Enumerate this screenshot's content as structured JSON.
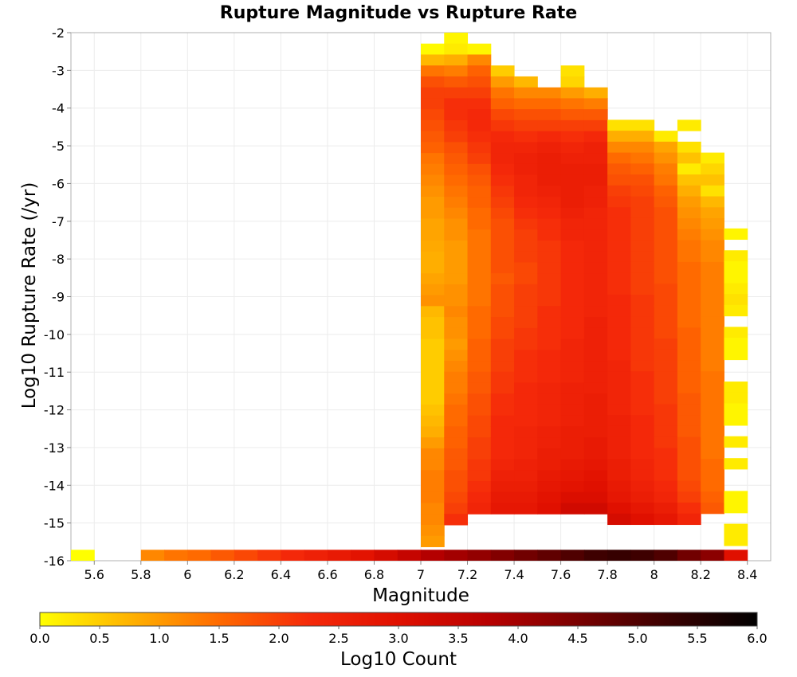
{
  "chart_data": {
    "type": "heatmap",
    "title": "Rupture Magnitude vs Rupture Rate",
    "xlabel": "Magnitude",
    "ylabel": "Log10 Rupture Rate (/yr)",
    "xlim": [
      5.5,
      8.5
    ],
    "ylim": [
      -16,
      -2
    ],
    "x_ticks": [
      "5.6",
      "5.8",
      "6",
      "6.2",
      "6.4",
      "6.6",
      "6.8",
      "7",
      "7.2",
      "7.4",
      "7.6",
      "7.8",
      "8",
      "8.2",
      "8.4"
    ],
    "y_ticks": [
      "-2",
      "-3",
      "-4",
      "-5",
      "-6",
      "-7",
      "-8",
      "-9",
      "-10",
      "-11",
      "-12",
      "-13",
      "-14",
      "-15",
      "-16"
    ],
    "grid": true,
    "x_bin_width": 0.1,
    "y_bin_height": 0.29,
    "colorbar": {
      "label": "Log10 Count",
      "range": [
        0,
        6
      ],
      "ticks": [
        "0.0",
        "0.5",
        "1.0",
        "1.5",
        "2.0",
        "2.5",
        "3.0",
        "3.5",
        "4.0",
        "4.5",
        "5.0",
        "5.5",
        "6.0"
      ],
      "colors": [
        "#ffff00",
        "#ffb300",
        "#ff6a00",
        "#f52a0a",
        "#e01000",
        "#b80000",
        "#7a0000",
        "#3a0000",
        "#000000"
      ]
    },
    "columns": [
      {
        "m": 5.55,
        "log_rate_top": -15.71,
        "bottom_row_log_count": 0.0,
        "values": []
      },
      {
        "m": 5.85,
        "log_rate_top": -15.71,
        "bottom_row_log_count": 1.2,
        "values": []
      },
      {
        "m": 5.95,
        "log_rate_top": -15.71,
        "bottom_row_log_count": 1.4,
        "values": []
      },
      {
        "m": 6.05,
        "log_rate_top": -15.71,
        "bottom_row_log_count": 1.5,
        "values": []
      },
      {
        "m": 6.15,
        "log_rate_top": -15.71,
        "bottom_row_log_count": 1.7,
        "values": []
      },
      {
        "m": 6.25,
        "log_rate_top": -15.71,
        "bottom_row_log_count": 1.9,
        "values": []
      },
      {
        "m": 6.35,
        "log_rate_top": -15.71,
        "bottom_row_log_count": 2.1,
        "values": []
      },
      {
        "m": 6.45,
        "log_rate_top": -15.71,
        "bottom_row_log_count": 2.3,
        "values": []
      },
      {
        "m": 6.55,
        "log_rate_top": -15.71,
        "bottom_row_log_count": 2.5,
        "values": []
      },
      {
        "m": 6.65,
        "log_rate_top": -15.71,
        "bottom_row_log_count": 2.7,
        "values": []
      },
      {
        "m": 6.75,
        "log_rate_top": -15.71,
        "bottom_row_log_count": 2.9,
        "values": []
      },
      {
        "m": 6.85,
        "log_rate_top": -15.71,
        "bottom_row_log_count": 3.2,
        "values": []
      },
      {
        "m": 6.95,
        "log_rate_top": -15.71,
        "bottom_row_log_count": 3.5,
        "values": []
      },
      {
        "m": 7.05,
        "log_rate_top": -2.29,
        "bottom_row_log_count": 3.8,
        "values": [
          0.05,
          0.7,
          1.4,
          1.8,
          2.0,
          2.0,
          1.9,
          1.8,
          1.7,
          1.6,
          1.4,
          1.3,
          1.2,
          1.1,
          1.0,
          1.0,
          0.9,
          0.9,
          0.85,
          0.8,
          0.8,
          0.9,
          1.0,
          1.1,
          0.7,
          0.6,
          0.6,
          0.5,
          0.5,
          0.5,
          0.5,
          0.5,
          0.5,
          0.6,
          0.7,
          0.8,
          1.0,
          1.2,
          1.2,
          1.3,
          1.3,
          1.3,
          1.2,
          1.2,
          1.1,
          1.0
        ]
      },
      {
        "m": 7.15,
        "log_rate_top": -2.0,
        "bottom_row_log_count": 4.0,
        "values": [
          0.1,
          0.2,
          0.8,
          1.3,
          1.7,
          2.0,
          2.2,
          2.2,
          2.1,
          2.0,
          1.8,
          1.7,
          1.6,
          1.5,
          1.4,
          1.3,
          1.2,
          1.1,
          1.1,
          1.0,
          1.0,
          1.0,
          1.0,
          1.1,
          1.1,
          1.2,
          1.1,
          1.1,
          1.0,
          1.1,
          1.2,
          1.3,
          1.3,
          1.4,
          1.5,
          1.5,
          1.6,
          1.6,
          1.7,
          1.7,
          1.8,
          1.8,
          1.9,
          2.0,
          2.2
        ]
      },
      {
        "m": 7.25,
        "log_rate_top": -2.29,
        "bottom_row_log_count": 4.2,
        "values": [
          0.1,
          1.2,
          1.6,
          1.8,
          2.0,
          2.2,
          2.3,
          2.3,
          2.2,
          2.1,
          2.0,
          1.8,
          1.7,
          1.6,
          1.6,
          1.5,
          1.5,
          1.4,
          1.4,
          1.4,
          1.4,
          1.4,
          1.4,
          1.4,
          1.5,
          1.5,
          1.5,
          1.6,
          1.6,
          1.6,
          1.7,
          1.7,
          1.8,
          1.8,
          1.9,
          1.9,
          2.0,
          2.0,
          2.1,
          2.1,
          2.2,
          2.3,
          2.4
        ]
      },
      {
        "m": 7.35,
        "log_rate_top": -2.87,
        "bottom_row_log_count": 4.4,
        "values": [
          0.5,
          1.0,
          1.4,
          1.6,
          1.9,
          2.1,
          2.3,
          2.4,
          2.4,
          2.3,
          2.2,
          2.1,
          2.0,
          1.9,
          1.8,
          1.8,
          1.8,
          1.8,
          1.8,
          1.7,
          1.8,
          1.8,
          1.8,
          1.9,
          1.9,
          2.0,
          2.0,
          2.0,
          2.1,
          2.1,
          2.2,
          2.2,
          2.3,
          2.3,
          2.3,
          2.3,
          2.4,
          2.5,
          2.6,
          2.7,
          2.8
        ]
      },
      {
        "m": 7.45,
        "log_rate_top": -3.16,
        "bottom_row_log_count": 4.6,
        "values": [
          0.7,
          1.2,
          1.5,
          1.8,
          2.0,
          2.2,
          2.4,
          2.5,
          2.5,
          2.4,
          2.4,
          2.3,
          2.2,
          2.1,
          2.0,
          2.0,
          2.0,
          1.9,
          1.9,
          2.0,
          2.0,
          2.0,
          2.0,
          2.1,
          2.1,
          2.2,
          2.2,
          2.2,
          2.3,
          2.3,
          2.3,
          2.3,
          2.4,
          2.4,
          2.4,
          2.5,
          2.5,
          2.6,
          2.7,
          2.8
        ]
      },
      {
        "m": 7.55,
        "log_rate_top": -3.45,
        "bottom_row_log_count": 4.8,
        "values": [
          1.2,
          1.5,
          1.8,
          2.0,
          2.3,
          2.5,
          2.6,
          2.6,
          2.6,
          2.5,
          2.4,
          2.3,
          2.2,
          2.2,
          2.1,
          2.1,
          2.1,
          2.1,
          2.1,
          2.1,
          2.2,
          2.2,
          2.2,
          2.2,
          2.3,
          2.3,
          2.3,
          2.4,
          2.4,
          2.4,
          2.4,
          2.5,
          2.5,
          2.6,
          2.6,
          2.7,
          2.8,
          2.9,
          3.0
        ]
      },
      {
        "m": 7.65,
        "log_rate_top": -2.87,
        "bottom_row_log_count": 5.0,
        "values": [
          0.3,
          0.4,
          1.0,
          1.4,
          1.7,
          2.0,
          2.2,
          2.4,
          2.5,
          2.6,
          2.6,
          2.6,
          2.6,
          2.5,
          2.4,
          2.4,
          2.3,
          2.3,
          2.3,
          2.3,
          2.3,
          2.3,
          2.3,
          2.3,
          2.3,
          2.4,
          2.4,
          2.4,
          2.4,
          2.5,
          2.5,
          2.5,
          2.5,
          2.6,
          2.6,
          2.6,
          2.7,
          2.8,
          2.9,
          3.1,
          3.3
        ]
      },
      {
        "m": 7.75,
        "log_rate_top": -3.45,
        "bottom_row_log_count": 5.2,
        "values": [
          0.8,
          1.3,
          1.7,
          2.0,
          2.3,
          2.5,
          2.5,
          2.6,
          2.6,
          2.5,
          2.5,
          2.4,
          2.4,
          2.4,
          2.4,
          2.4,
          2.4,
          2.4,
          2.4,
          2.4,
          2.4,
          2.5,
          2.5,
          2.5,
          2.5,
          2.5,
          2.5,
          2.5,
          2.6,
          2.6,
          2.6,
          2.6,
          2.7,
          2.7,
          2.8,
          2.9,
          3.0,
          3.1,
          3.3
        ]
      },
      {
        "m": 7.85,
        "log_rate_top": -4.31,
        "bottom_row_log_count": 5.3,
        "values": [
          0.3,
          0.8,
          1.2,
          1.5,
          1.7,
          1.8,
          2.0,
          2.1,
          2.2,
          2.2,
          2.2,
          2.2,
          2.2,
          2.2,
          2.2,
          2.2,
          2.3,
          2.3,
          2.3,
          2.3,
          2.3,
          2.3,
          2.4,
          2.4,
          2.4,
          2.4,
          2.4,
          2.5,
          2.5,
          2.5,
          2.5,
          2.6,
          2.6,
          2.7,
          2.8,
          3.0,
          3.2
        ]
      },
      {
        "m": 7.95,
        "log_rate_top": -4.31,
        "bottom_row_log_count": 5.2,
        "values": [
          0.3,
          0.8,
          1.2,
          1.4,
          1.6,
          1.8,
          1.9,
          2.0,
          2.0,
          2.0,
          2.0,
          2.0,
          2.0,
          2.0,
          2.0,
          2.0,
          2.1,
          2.1,
          2.1,
          2.1,
          2.1,
          2.1,
          2.1,
          2.2,
          2.2,
          2.2,
          2.2,
          2.3,
          2.3,
          2.3,
          2.3,
          2.4,
          2.4,
          2.5,
          2.6,
          2.8,
          3.0
        ]
      },
      {
        "m": 8.05,
        "log_rate_top": -4.6,
        "bottom_row_log_count": 5.0,
        "values": [
          0.2,
          0.9,
          1.1,
          1.3,
          1.4,
          1.6,
          1.7,
          1.8,
          1.8,
          1.8,
          1.8,
          1.8,
          1.8,
          1.8,
          1.9,
          1.9,
          1.9,
          1.9,
          1.9,
          2.0,
          2.0,
          2.0,
          2.0,
          2.0,
          2.0,
          2.1,
          2.1,
          2.1,
          2.1,
          2.2,
          2.2,
          2.2,
          2.3,
          2.4,
          2.6,
          2.8
        ]
      },
      {
        "m": 8.15,
        "log_rate_top": -4.31,
        "bottom_row_log_count": 4.6,
        "values": [
          0.2,
          null,
          0.3,
          0.6,
          0.2,
          0.6,
          0.8,
          1.0,
          1.1,
          1.2,
          1.3,
          1.4,
          1.4,
          1.5,
          1.5,
          1.5,
          1.5,
          1.5,
          1.5,
          1.6,
          1.6,
          1.6,
          1.6,
          1.6,
          1.6,
          1.7,
          1.7,
          1.7,
          1.7,
          1.8,
          1.8,
          1.8,
          1.8,
          1.9,
          2.0,
          2.2,
          2.4
        ]
      },
      {
        "m": 8.25,
        "log_rate_top": -5.18,
        "bottom_row_log_count": 4.3,
        "values": [
          0.2,
          0.4,
          0.6,
          0.3,
          0.7,
          0.9,
          1.0,
          1.1,
          1.2,
          1.2,
          1.3,
          1.3,
          1.3,
          1.3,
          1.3,
          1.3,
          1.3,
          1.3,
          1.3,
          1.3,
          1.4,
          1.4,
          1.4,
          1.4,
          1.4,
          1.4,
          1.4,
          1.4,
          1.5,
          1.5,
          1.5,
          1.6,
          1.7
        ]
      },
      {
        "m": 8.35,
        "log_rate_top": -7.19,
        "bottom_row_log_count": 3.0,
        "values": [
          0.1,
          null,
          0.2,
          0.1,
          0.1,
          0.2,
          0.3,
          0.2,
          null,
          0.2,
          0.1,
          0.1,
          null,
          null,
          0.2,
          0.2,
          0.1,
          0.1,
          null,
          0.2,
          null,
          0.2,
          null,
          null,
          0.1,
          0.1,
          null,
          0.2,
          0.2
        ]
      }
    ]
  }
}
